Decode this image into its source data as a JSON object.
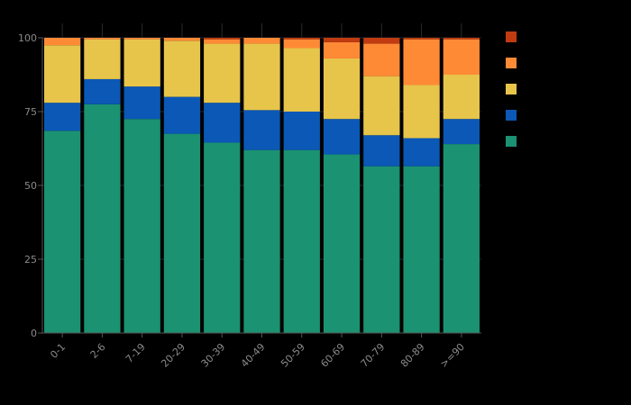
{
  "chart_data": {
    "type": "bar",
    "stacked": true,
    "title": "",
    "xlabel": "",
    "ylabel": "",
    "ylim": [
      0,
      100
    ],
    "yticks": [
      0,
      25,
      50,
      75,
      100
    ],
    "legend_position": "right",
    "categories": [
      "0-1",
      "2-6",
      "7-19",
      "20-29",
      "30-39",
      "40-49",
      "50-59",
      "60-69",
      "70-79",
      "80-89",
      ">=90"
    ],
    "series": [
      {
        "name": "",
        "color": "#1b9272",
        "values": [
          68.5,
          77.5,
          72.5,
          67.5,
          64.5,
          62,
          62,
          60.5,
          56.5,
          56.5,
          64
        ]
      },
      {
        "name": "",
        "color": "#0b58b6",
        "values": [
          9.5,
          8.5,
          11,
          12.5,
          13.5,
          13.5,
          13,
          12,
          10.5,
          9.5,
          8.5
        ]
      },
      {
        "name": "",
        "color": "#e7c54a",
        "values": [
          19.5,
          13.5,
          16,
          19,
          20,
          22.5,
          21.5,
          20.5,
          20,
          18,
          15
        ]
      },
      {
        "name": "",
        "color": "#ff8a36",
        "values": [
          2.5,
          0.5,
          0.5,
          1,
          1.5,
          2,
          3,
          5.5,
          11,
          15.5,
          12
        ]
      },
      {
        "name": "",
        "color": "#c03b11",
        "values": [
          0,
          0,
          0,
          0,
          0.5,
          0,
          0.5,
          1.5,
          2,
          0.5,
          0.5
        ]
      }
    ],
    "legend_order": [
      4,
      3,
      2,
      1,
      0
    ]
  }
}
